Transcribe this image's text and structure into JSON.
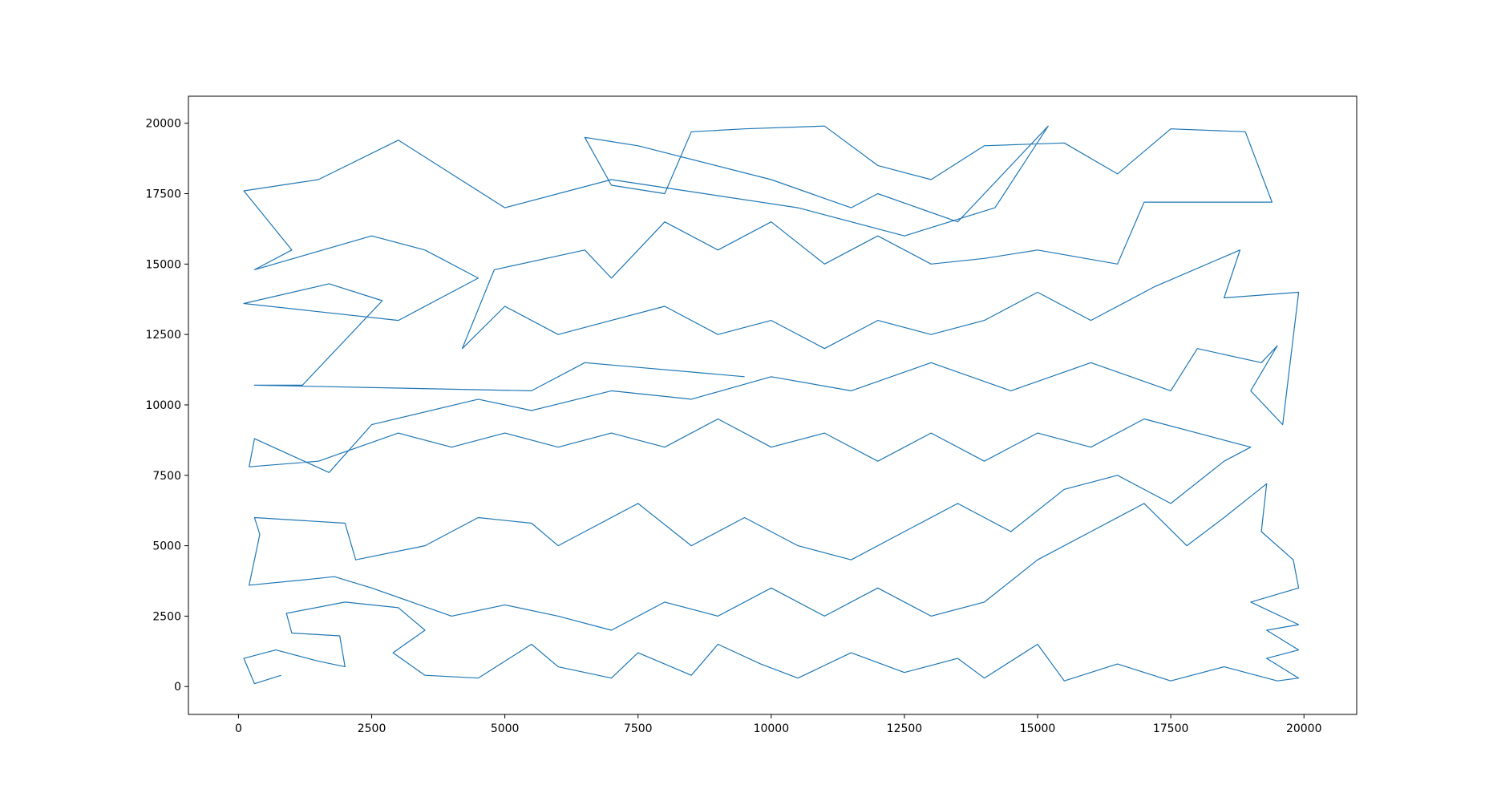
{
  "chart_data": {
    "type": "line",
    "color": "#1f77b4",
    "x": [
      800,
      300,
      100,
      700,
      1500,
      2000,
      1900,
      1000,
      900,
      2000,
      3000,
      3500,
      2900,
      3500,
      4500,
      5500,
      6000,
      7000,
      7500,
      8500,
      9000,
      9800,
      10500,
      11500,
      12500,
      13500,
      14000,
      15000,
      15500,
      16500,
      17500,
      18500,
      19500,
      19900,
      19300,
      19900,
      19300,
      19900,
      19000,
      19900,
      19800,
      19200,
      19300,
      18500,
      17800,
      17000,
      16000,
      15000,
      14000,
      13000,
      12000,
      11000,
      10000,
      9000,
      8000,
      7000,
      6000,
      5000,
      4000,
      2500,
      1800,
      1300,
      200,
      400,
      300,
      2000,
      2200,
      3500,
      4500,
      5500,
      6000,
      6500,
      7500,
      8500,
      9500,
      10500,
      11500,
      12500,
      13500,
      14500,
      15500,
      16500,
      17500,
      18500,
      19000,
      18000,
      17000,
      16000,
      15000,
      14000,
      13000,
      12000,
      11000,
      10000,
      9000,
      8000,
      7000,
      6000,
      5000,
      4000,
      3000,
      1500,
      200,
      300,
      1700,
      2500,
      4500,
      5500,
      7000,
      8500,
      10000,
      11500,
      13000,
      14500,
      16000,
      17500,
      18000,
      19200,
      19500,
      19000,
      19600,
      19900,
      18500,
      18800,
      17200,
      16000,
      15000,
      14000,
      13000,
      12000,
      11000,
      10000,
      9000,
      8000,
      7000,
      6000,
      5000,
      4200,
      4800,
      6500,
      7000,
      8000,
      9000,
      10000,
      11000,
      12000,
      13000,
      14000,
      15000,
      16500,
      17000,
      19400,
      18900,
      17500,
      16500,
      15500,
      14000,
      13000,
      12000,
      11000,
      9500,
      8500,
      8000,
      7000,
      6500,
      7500,
      10000,
      11500,
      12000,
      13500,
      15200,
      14200,
      12500,
      10500,
      7000,
      5000,
      3000,
      1500,
      100,
      1000,
      300,
      2500,
      3500,
      4500,
      3000,
      100,
      1700,
      2700,
      1200,
      300,
      5500,
      6500,
      9500
    ],
    "values": [
      400,
      100,
      1000,
      1300,
      900,
      700,
      1800,
      1900,
      2600,
      3000,
      2800,
      2000,
      1200,
      400,
      300,
      1500,
      700,
      300,
      1200,
      400,
      1500,
      800,
      300,
      1200,
      500,
      1000,
      300,
      1500,
      200,
      800,
      200,
      700,
      200,
      300,
      1000,
      1300,
      2000,
      2200,
      3000,
      3500,
      4500,
      5500,
      7200,
      6000,
      5000,
      6500,
      5500,
      4500,
      3000,
      2500,
      3500,
      2500,
      3500,
      2500,
      3000,
      2000,
      2500,
      2900,
      2500,
      3500,
      3900,
      3800,
      3600,
      5400,
      6000,
      5800,
      4500,
      5000,
      6000,
      5800,
      5000,
      5500,
      6500,
      5000,
      6000,
      5000,
      4500,
      5500,
      6500,
      5500,
      7000,
      7500,
      6500,
      8000,
      8500,
      9000,
      9500,
      8500,
      9000,
      8000,
      9000,
      8000,
      9000,
      8500,
      9500,
      8500,
      9000,
      8500,
      9000,
      8500,
      9000,
      8000,
      7800,
      8800,
      7600,
      9300,
      10200,
      9800,
      10500,
      10200,
      11000,
      10500,
      11500,
      10500,
      11500,
      10500,
      12000,
      11500,
      12100,
      10500,
      9300,
      14000,
      13800,
      15500,
      14200,
      13000,
      14000,
      13000,
      12500,
      13000,
      12000,
      13000,
      12500,
      13500,
      13000,
      12500,
      13500,
      12000,
      14800,
      15500,
      14500,
      16500,
      15500,
      16500,
      15000,
      16000,
      15000,
      15200,
      15500,
      15000,
      17200,
      17200,
      19700,
      19800,
      18200,
      19300,
      19200,
      18000,
      18500,
      19900,
      19800,
      19700,
      17500,
      17800,
      19500,
      19200,
      18000,
      17000,
      17500,
      16500,
      19900,
      17000,
      16000,
      17000,
      18000,
      17000,
      19400,
      18000,
      17600,
      15500,
      14800,
      16000,
      15500,
      14500,
      13000,
      13600,
      14300,
      13700,
      10700,
      10700,
      10500,
      11500,
      11000
    ],
    "xlim": [
      -940,
      20990
    ],
    "ylim": [
      -990,
      20960
    ],
    "xticks": [
      0,
      2500,
      5000,
      7500,
      10000,
      12500,
      15000,
      17500,
      20000
    ],
    "yticks": [
      0,
      2500,
      5000,
      7500,
      10000,
      12500,
      15000,
      17500,
      20000
    ]
  }
}
